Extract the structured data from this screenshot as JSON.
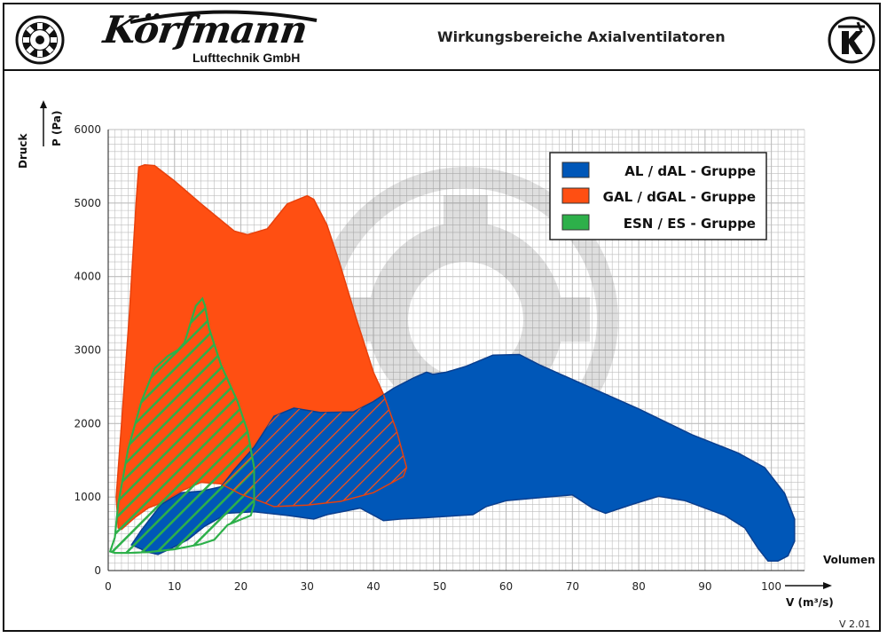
{
  "header": {
    "brand_name": "Körfmann",
    "brand_sub": "Lufttechnik GmbH",
    "title": "Wirkungsbereiche Axialventilatoren"
  },
  "footer": {
    "version": "V 2.01"
  },
  "colors": {
    "al": "#0057B8",
    "gal": "#FF4F12",
    "esn": "#2DB04A",
    "grid": "#BDBDBD"
  },
  "chart_data": {
    "type": "area",
    "y_axis": {
      "title": "Druck",
      "label": "P (Pa)",
      "range": [
        0,
        6000
      ],
      "ticks": [
        0,
        1000,
        2000,
        3000,
        4000,
        5000,
        6000
      ]
    },
    "x_axis": {
      "title": "Volumen",
      "label": "V (m³/s)",
      "range": [
        0,
        105
      ],
      "ticks": [
        0,
        10,
        20,
        30,
        40,
        50,
        60,
        70,
        80,
        90,
        100
      ]
    },
    "grid": true,
    "legend_position": "top-right",
    "series": [
      {
        "name": "AL / dAL - Gruppe",
        "color_key": "al",
        "fill": "solid",
        "outline": [
          [
            3.5,
            350
          ],
          [
            6,
            250
          ],
          [
            7.5,
            220
          ],
          [
            9.5,
            300
          ],
          [
            12,
            420
          ],
          [
            14.5,
            600
          ],
          [
            18,
            780
          ],
          [
            22,
            800
          ],
          [
            27,
            750
          ],
          [
            31,
            700
          ],
          [
            33,
            760
          ],
          [
            38,
            850
          ],
          [
            41.5,
            680
          ],
          [
            44,
            700
          ],
          [
            48,
            720
          ],
          [
            55,
            760
          ],
          [
            57,
            870
          ],
          [
            60,
            950
          ],
          [
            66,
            1000
          ],
          [
            70,
            1030
          ],
          [
            73,
            850
          ],
          [
            75,
            780
          ],
          [
            79,
            900
          ],
          [
            83,
            1010
          ],
          [
            87,
            950
          ],
          [
            93,
            750
          ],
          [
            96,
            580
          ],
          [
            98,
            300
          ],
          [
            99.5,
            130
          ],
          [
            101,
            130
          ],
          [
            102.5,
            200
          ],
          [
            103.5,
            400
          ],
          [
            103.5,
            700
          ],
          [
            102,
            1050
          ],
          [
            99,
            1400
          ],
          [
            95,
            1600
          ],
          [
            88,
            1850
          ],
          [
            80,
            2200
          ],
          [
            72,
            2520
          ],
          [
            65,
            2800
          ],
          [
            62,
            2940
          ],
          [
            58,
            2930
          ],
          [
            54,
            2780
          ],
          [
            51,
            2700
          ],
          [
            49,
            2670
          ],
          [
            48,
            2700
          ],
          [
            46,
            2620
          ],
          [
            43,
            2480
          ],
          [
            40,
            2300
          ],
          [
            37,
            2160
          ],
          [
            32,
            2150
          ],
          [
            28,
            2210
          ],
          [
            25,
            2100
          ],
          [
            22,
            1680
          ],
          [
            19,
            1370
          ],
          [
            17,
            1140
          ],
          [
            14,
            1080
          ],
          [
            11,
            1060
          ],
          [
            8,
            900
          ],
          [
            5,
            550
          ]
        ]
      },
      {
        "name": "GAL / dGAL - Gruppe",
        "color_key": "gal",
        "fill": "solid",
        "outline": [
          [
            1.5,
            580
          ],
          [
            1.2,
            1000
          ],
          [
            2,
            2000
          ],
          [
            3.2,
            3500
          ],
          [
            4.2,
            5000
          ],
          [
            4.6,
            5490
          ],
          [
            5.5,
            5520
          ],
          [
            7,
            5510
          ],
          [
            10,
            5300
          ],
          [
            14,
            4990
          ],
          [
            19,
            4620
          ],
          [
            21,
            4570
          ],
          [
            24,
            4650
          ],
          [
            27,
            4990
          ],
          [
            30,
            5100
          ],
          [
            31,
            5050
          ],
          [
            33,
            4700
          ],
          [
            35,
            4150
          ],
          [
            37.5,
            3400
          ],
          [
            40,
            2700
          ],
          [
            41.5,
            2400
          ],
          [
            43.5,
            1900
          ],
          [
            45,
            1400
          ],
          [
            44.5,
            1280
          ],
          [
            40,
            1060
          ],
          [
            35,
            940
          ],
          [
            30,
            890
          ],
          [
            25,
            870
          ],
          [
            23,
            940
          ],
          [
            20,
            1040
          ],
          [
            17,
            1180
          ],
          [
            14,
            1200
          ],
          [
            11,
            1080
          ],
          [
            8,
            920
          ],
          [
            6,
            850
          ],
          [
            4,
            720
          ],
          [
            2,
            560
          ]
        ]
      },
      {
        "name": "ESN / ES - Gruppe",
        "color_key": "esn",
        "fill": "hatched",
        "outline": [
          [
            0.3,
            260
          ],
          [
            1,
            450
          ],
          [
            1.5,
            900
          ],
          [
            3,
            1650
          ],
          [
            5,
            2300
          ],
          [
            7,
            2750
          ],
          [
            9,
            2920
          ],
          [
            10.5,
            3000
          ],
          [
            11.5,
            3100
          ],
          [
            13.2,
            3600
          ],
          [
            14.2,
            3700
          ],
          [
            14.6,
            3600
          ],
          [
            15.2,
            3300
          ],
          [
            17,
            2800
          ],
          [
            19.5,
            2300
          ],
          [
            21,
            1900
          ],
          [
            22,
            1400
          ],
          [
            22,
            900
          ],
          [
            21.5,
            750
          ],
          [
            18,
            620
          ],
          [
            16,
            420
          ],
          [
            14,
            360
          ],
          [
            10,
            290
          ],
          [
            6,
            250
          ],
          [
            3,
            240
          ],
          [
            1,
            240
          ]
        ]
      }
    ]
  }
}
